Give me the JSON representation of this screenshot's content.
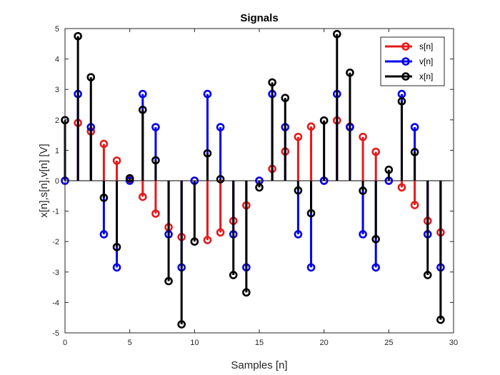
{
  "chart_data": {
    "type": "stem",
    "title": "Signals",
    "xlabel": "Samples [n]",
    "ylabel": "x[n],s[n],v[n] [V]",
    "xlim": [
      0,
      30
    ],
    "ylim": [
      -5,
      5
    ],
    "xticks": [
      0,
      5,
      10,
      15,
      20,
      25,
      30
    ],
    "yticks": [
      -5,
      -4,
      -3,
      -2,
      -1,
      0,
      1,
      2,
      3,
      4,
      5
    ],
    "grid": false,
    "legend_position": "top-right",
    "x": [
      0,
      1,
      2,
      3,
      4,
      5,
      6,
      7,
      8,
      9,
      10,
      11,
      12,
      13,
      14,
      15,
      16,
      17,
      18,
      19,
      20,
      21,
      22,
      23,
      24,
      25,
      26,
      27,
      28,
      29
    ],
    "series": [
      {
        "name": "s[n]",
        "color": "#e41a1c",
        "values": [
          0,
          1.9,
          1.62,
          1.21,
          0.66,
          0.05,
          -0.53,
          -1.08,
          -1.53,
          -1.85,
          0,
          -1.95,
          -1.7,
          -1.32,
          -0.81,
          0,
          0.39,
          0.96,
          1.44,
          1.78,
          0,
          1.98,
          1.78,
          1.44,
          0.95,
          0,
          -0.22,
          -0.8,
          -1.32,
          -1.7
        ]
      },
      {
        "name": "v[n]",
        "color": "#0000ee",
        "values": [
          0,
          2.85,
          1.76,
          -1.76,
          -2.85,
          0,
          2.85,
          1.76,
          -1.76,
          -2.85,
          0,
          2.85,
          1.76,
          -1.76,
          -2.85,
          0,
          2.85,
          1.76,
          -1.76,
          -2.85,
          0,
          2.85,
          1.76,
          -1.76,
          -2.85,
          0,
          2.85,
          1.76,
          -1.76,
          -2.85
        ]
      },
      {
        "name": "x[n]",
        "color": "#000000",
        "values": [
          1.99,
          4.75,
          3.4,
          -0.56,
          -2.18,
          0.08,
          2.33,
          0.67,
          -3.3,
          -4.72,
          -2.0,
          0.9,
          0.05,
          -3.1,
          -3.67,
          -0.22,
          3.23,
          2.72,
          -0.32,
          -1.07,
          1.98,
          4.82,
          3.55,
          -0.33,
          -1.92,
          0.36,
          2.61,
          0.94,
          -3.1,
          -4.57
        ]
      }
    ]
  }
}
